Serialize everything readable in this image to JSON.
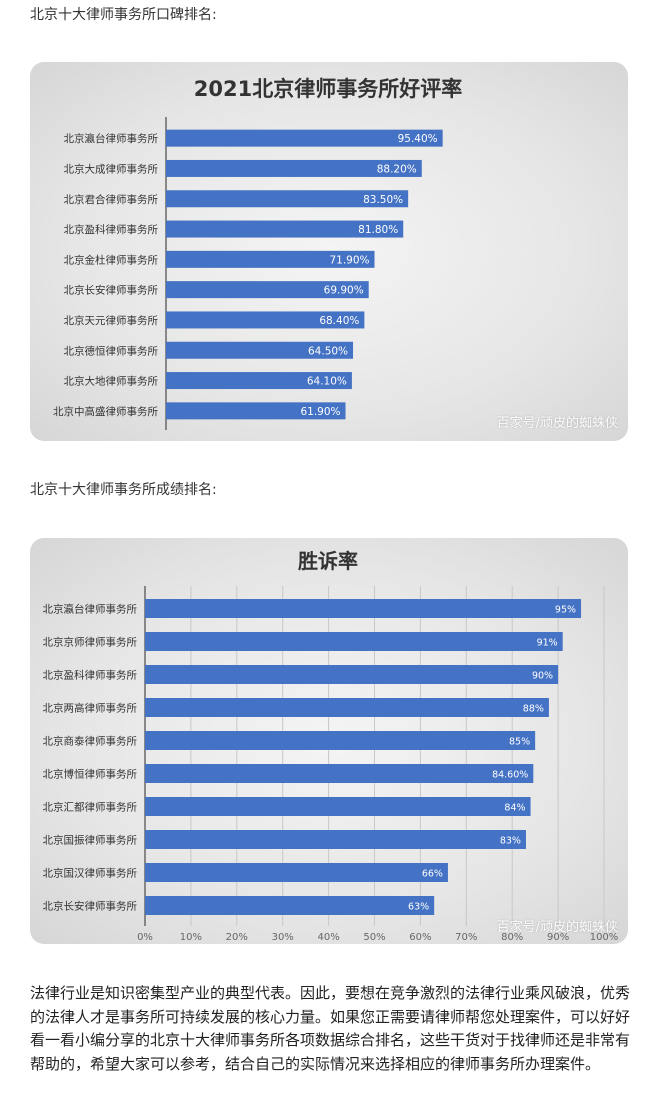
{
  "section1": {
    "heading": "北京十大律师事务所口碑排名:"
  },
  "section2": {
    "heading": "北京十大律师事务所成绩排名:"
  },
  "chart_data": [
    {
      "type": "bar",
      "orientation": "horizontal",
      "title": "2021北京律师事务所好评率",
      "categories": [
        "北京瀛台律师事务所",
        "北京大成律师事务所",
        "北京君合律师事务所",
        "北京盈科律师事务所",
        "北京金杜律师事务所",
        "北京长安律师事务所",
        "北京天元律师事务所",
        "北京德恒律师事务所",
        "北京大地律师事务所",
        "北京中高盛律师事务所"
      ],
      "values": [
        95.4,
        88.2,
        83.5,
        81.8,
        71.9,
        69.9,
        68.4,
        64.5,
        64.1,
        61.9
      ],
      "value_labels": [
        "95.40%",
        "88.20%",
        "83.50%",
        "81.80%",
        "71.90%",
        "69.90%",
        "68.40%",
        "64.50%",
        "64.10%",
        "61.90%"
      ],
      "xlim": [
        0,
        160
      ],
      "grid": false,
      "bar_color": "#4472c4",
      "watermark": "百家号/顽皮的蜘蛛侠"
    },
    {
      "type": "bar",
      "orientation": "horizontal",
      "title": "胜诉率",
      "categories": [
        "北京瀛台律师事务所",
        "北京京师律师事务所",
        "北京盈科律师事务所",
        "北京两高律师事务所",
        "北京商泰律师事务所",
        "北京博恒律师事务所",
        "北京汇都律师事务所",
        "北京国振律师事务所",
        "北京国汉律师事务所",
        "北京长安律师事务所"
      ],
      "values": [
        95,
        91,
        90,
        88,
        85,
        84.6,
        84,
        83,
        66,
        63
      ],
      "value_labels": [
        "95%",
        "91%",
        "90%",
        "88%",
        "85%",
        "84.60%",
        "84%",
        "83%",
        "66%",
        "63%"
      ],
      "xlim": [
        0,
        100
      ],
      "xticks": [
        "0%",
        "10%",
        "20%",
        "30%",
        "40%",
        "50%",
        "60%",
        "70%",
        "80%",
        "90%",
        "100%"
      ],
      "grid": true,
      "bar_color": "#4472c4",
      "watermark": "百家号/顽皮的蜘蛛侠"
    }
  ],
  "paragraph": "法律行业是知识密集型产业的典型代表。因此，要想在竞争激烈的法律行业乘风破浪，优秀的法律人才是事务所可持续发展的核心力量。如果您正需要请律师帮您处理案件，可以好好看一看小编分享的北京十大律师事务所各项数据综合排名，这些干货对于找律师还是非常有帮助的，希望大家可以参考，结合自己的实际情况来选择相应的律师事务所办理案件。"
}
